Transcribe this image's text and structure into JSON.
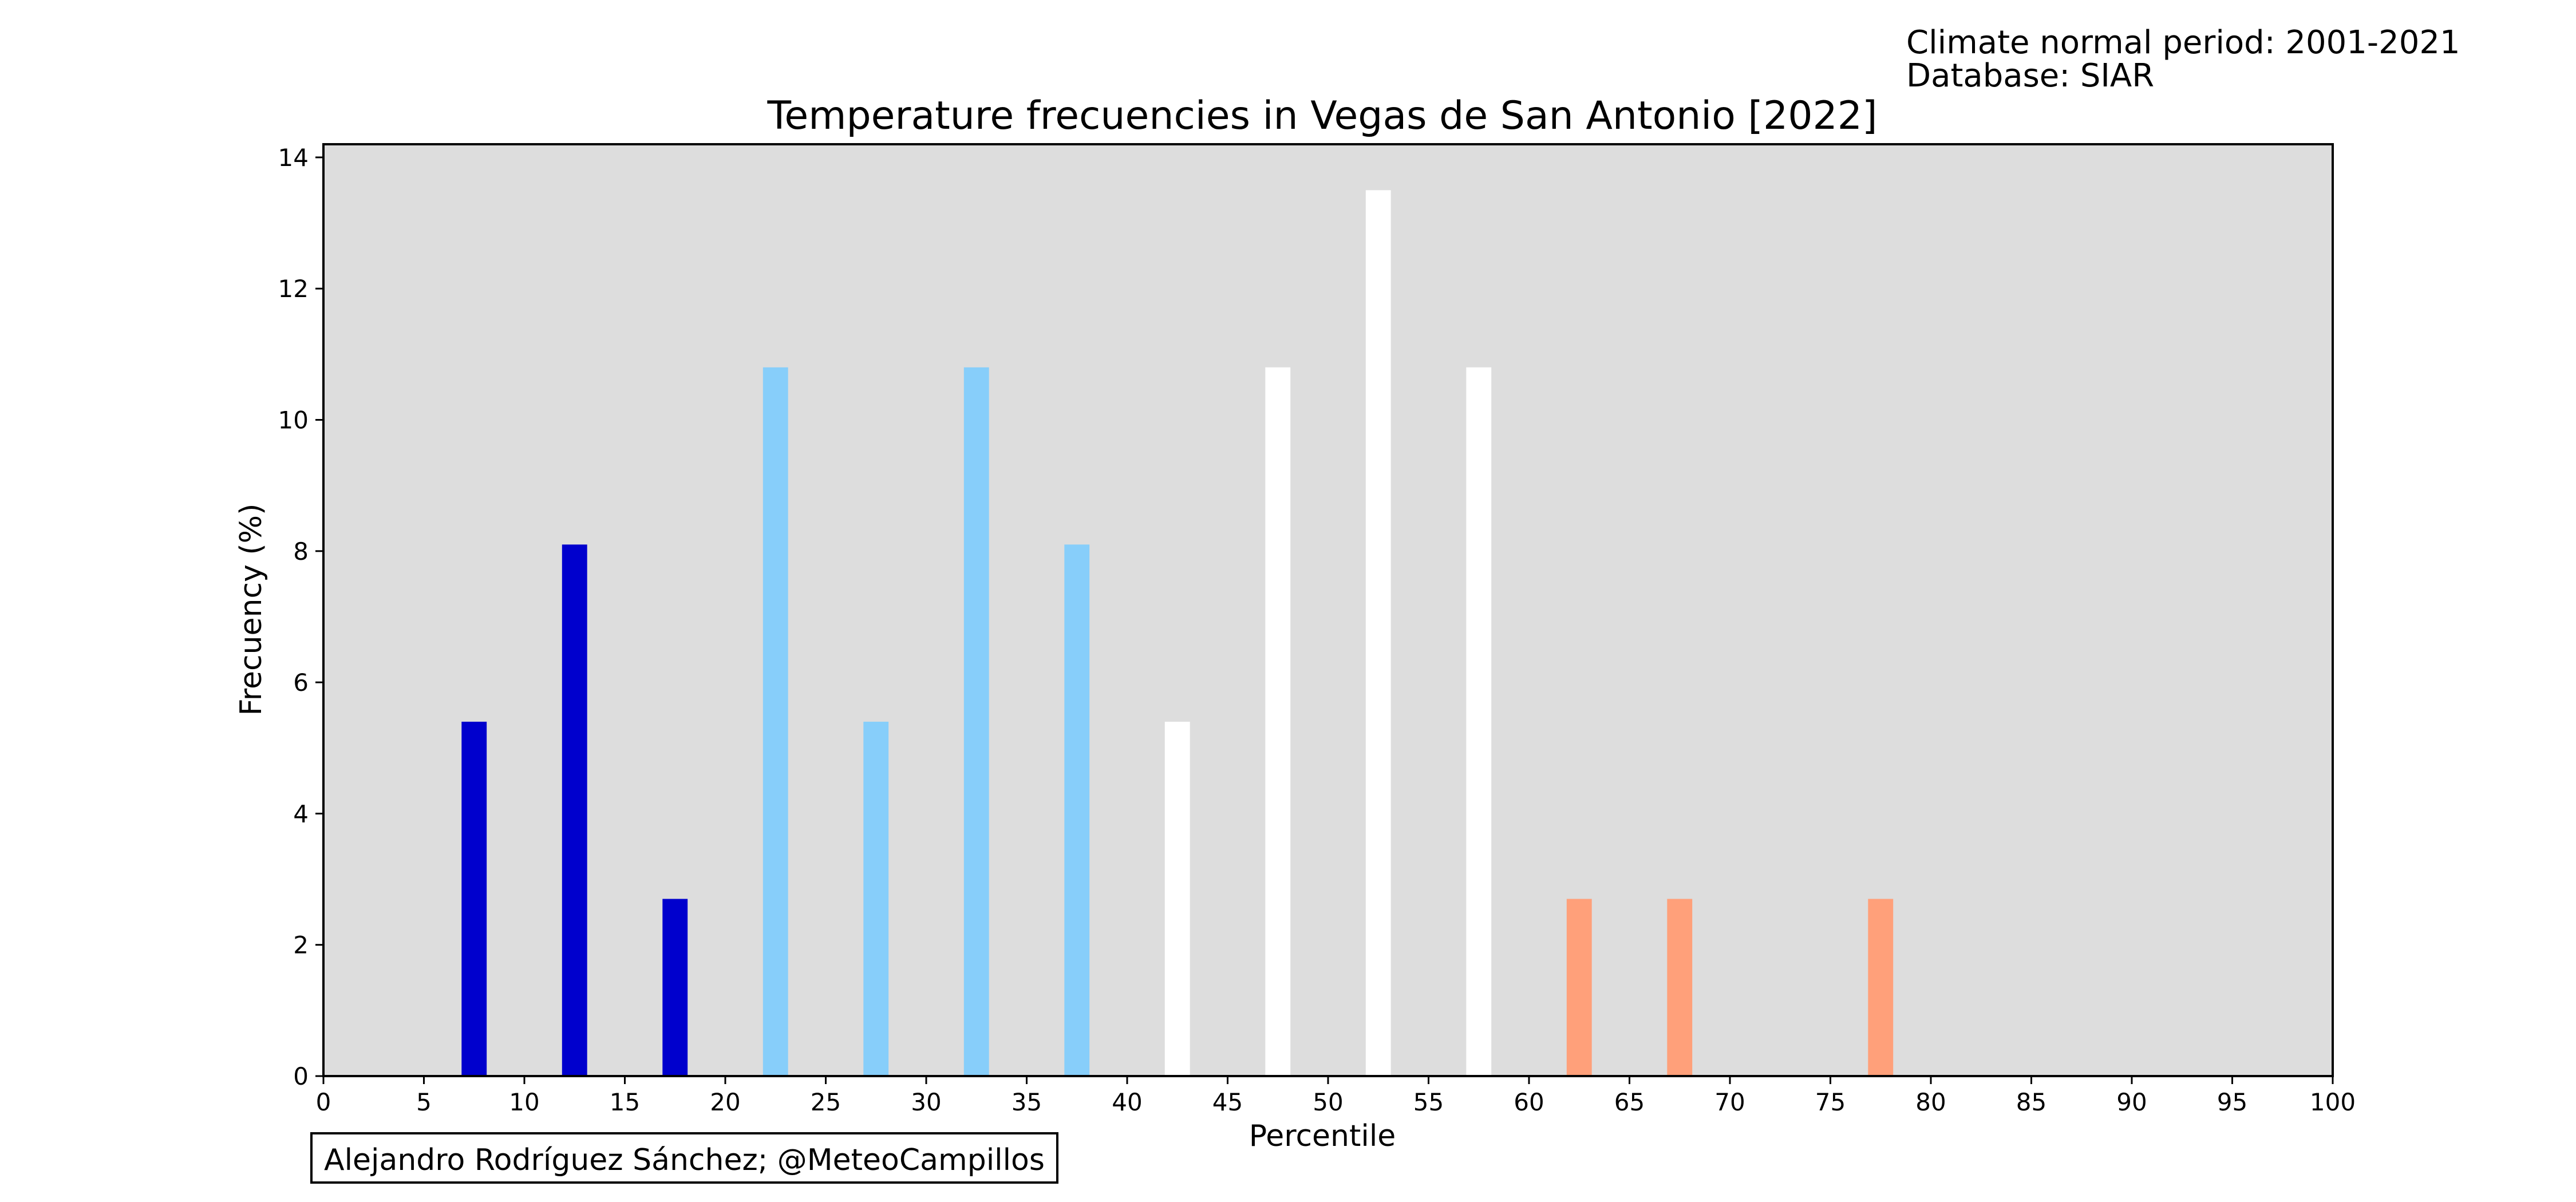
{
  "meta": {
    "climate_normal_period": "Climate normal period: 2001-2021",
    "database": "Database: SIAR"
  },
  "credit": "Alejandro Rodríguez Sánchez; @MeteoCampillos",
  "chart_data": {
    "type": "bar",
    "title": "Temperature frecuencies in Vegas de San Antonio [2022]",
    "xlabel": "Percentile",
    "ylabel": "Frecuency (%)",
    "xlim": [
      0,
      100
    ],
    "ylim": [
      0,
      14.2
    ],
    "xticks": [
      "0",
      "5",
      "10",
      "15",
      "20",
      "25",
      "30",
      "35",
      "40",
      "45",
      "50",
      "55",
      "60",
      "65",
      "70",
      "75",
      "80",
      "85",
      "90",
      "95",
      "100"
    ],
    "yticks": [
      "0",
      "2",
      "4",
      "6",
      "8",
      "10",
      "12",
      "14"
    ],
    "grid": false,
    "plot_background": "#dddddd",
    "bars": [
      {
        "x": 7.5,
        "value": 5.4,
        "color": "#0000cd"
      },
      {
        "x": 12.5,
        "value": 8.1,
        "color": "#0000cd"
      },
      {
        "x": 17.5,
        "value": 2.7,
        "color": "#0000cd"
      },
      {
        "x": 22.5,
        "value": 10.8,
        "color": "#87cefa"
      },
      {
        "x": 27.5,
        "value": 5.4,
        "color": "#87cefa"
      },
      {
        "x": 32.5,
        "value": 10.8,
        "color": "#87cefa"
      },
      {
        "x": 37.5,
        "value": 8.1,
        "color": "#87cefa"
      },
      {
        "x": 42.5,
        "value": 5.4,
        "color": "#ffffff"
      },
      {
        "x": 47.5,
        "value": 10.8,
        "color": "#ffffff"
      },
      {
        "x": 52.5,
        "value": 13.5,
        "color": "#ffffff"
      },
      {
        "x": 57.5,
        "value": 10.8,
        "color": "#ffffff"
      },
      {
        "x": 62.5,
        "value": 2.7,
        "color": "#ffa07a"
      },
      {
        "x": 67.5,
        "value": 2.7,
        "color": "#ffa07a"
      },
      {
        "x": 77.5,
        "value": 2.7,
        "color": "#ffa07a"
      }
    ]
  }
}
